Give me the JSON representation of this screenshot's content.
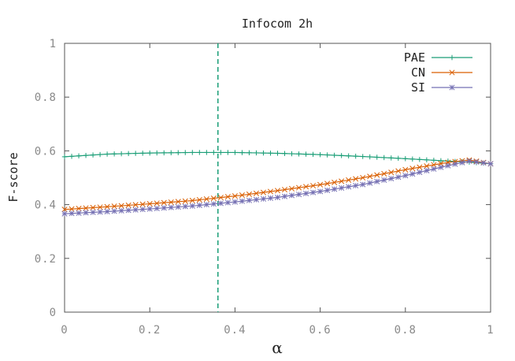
{
  "chart_data": {
    "type": "line",
    "title": "Infocom 2h",
    "xlabel": "α",
    "ylabel": "F-score",
    "xlim": [
      0,
      1
    ],
    "ylim": [
      0,
      1
    ],
    "x_ticks": [
      "0",
      "0.2",
      "0.4",
      "0.6",
      "0.8",
      "1"
    ],
    "y_ticks": [
      "0",
      "0.2",
      "0.4",
      "0.6",
      "0.8",
      "1"
    ],
    "x_tick_values": [
      0,
      0.2,
      0.4,
      0.6,
      0.8,
      1
    ],
    "y_tick_values": [
      0,
      0.2,
      0.4,
      0.6,
      0.8,
      1
    ],
    "vline_x": 0.36,
    "vline_color": "#1b9e77",
    "legend_position": "top-right",
    "series": [
      {
        "name": "PAE",
        "color": "#1b9e77",
        "marker": "plus",
        "x": [
          0,
          0.1,
          0.2,
          0.3,
          0.4,
          0.5,
          0.6,
          0.7,
          0.8,
          0.9,
          0.95,
          1
        ],
        "values": [
          0.578,
          0.588,
          0.592,
          0.594,
          0.594,
          0.591,
          0.586,
          0.579,
          0.571,
          0.562,
          0.558,
          0.552
        ]
      },
      {
        "name": "CN",
        "color": "#d95f02",
        "marker": "x",
        "x": [
          0,
          0.1,
          0.2,
          0.3,
          0.4,
          0.5,
          0.6,
          0.7,
          0.8,
          0.9,
          0.95,
          1
        ],
        "values": [
          0.382,
          0.392,
          0.403,
          0.415,
          0.432,
          0.452,
          0.474,
          0.5,
          0.53,
          0.557,
          0.566,
          0.552
        ]
      },
      {
        "name": "SI",
        "color": "#7570b3",
        "marker": "star",
        "x": [
          0,
          0.1,
          0.2,
          0.3,
          0.4,
          0.5,
          0.6,
          0.7,
          0.8,
          0.9,
          0.95,
          1
        ],
        "values": [
          0.366,
          0.374,
          0.384,
          0.395,
          0.41,
          0.427,
          0.449,
          0.475,
          0.508,
          0.545,
          0.562,
          0.552
        ]
      }
    ]
  }
}
